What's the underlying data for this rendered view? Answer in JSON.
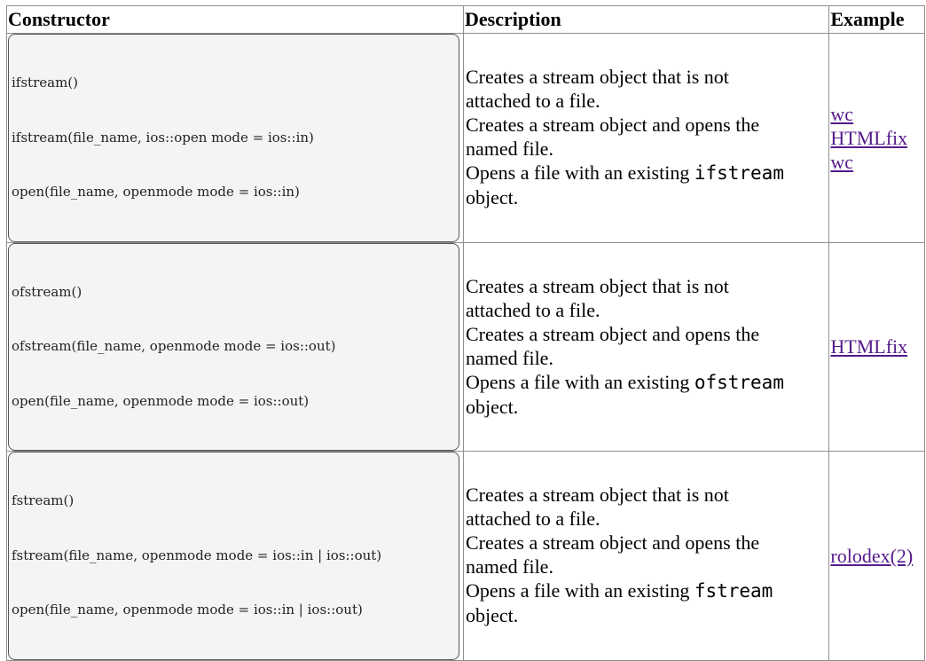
{
  "table": {
    "headers": {
      "constructor": "Constructor",
      "description": "Description",
      "example": "Example"
    },
    "rows": [
      {
        "code": [
          "ifstream()",
          "ifstream(file_name, ios::open mode = ios::in)",
          "open(file_name, openmode mode = ios::in)"
        ],
        "desc": {
          "l1": "Creates a stream object that is not",
          "l2": "attached to a file.",
          "l3": "Creates a stream object and opens the",
          "l4": "named file.",
          "l5_pre": "Opens a file with an existing ",
          "l5_code": "ifstream",
          "l6": "object."
        },
        "examples": [
          "wc",
          "HTMLfix",
          "wc"
        ]
      },
      {
        "code": [
          "ofstream()",
          "ofstream(file_name, openmode mode = ios::out)",
          "open(file_name, openmode mode = ios::out)"
        ],
        "desc": {
          "l1": "Creates a stream object that is not",
          "l2": "attached to a file.",
          "l3": "Creates a stream object and opens the",
          "l4": "named file.",
          "l5_pre": "Opens a file with an existing ",
          "l5_code": "ofstream",
          "l6": "object."
        },
        "examples": [
          "HTMLfix"
        ]
      },
      {
        "code": [
          "fstream()",
          "fstream(file_name, openmode mode = ios::in | ios::out)",
          "open(file_name, openmode mode = ios::in | ios::out)"
        ],
        "desc": {
          "l1": "Creates a stream object that is not",
          "l2": "attached to a file.",
          "l3": "Creates a stream object and opens the",
          "l4": "named file.",
          "l5_pre": "Opens a file with an existing ",
          "l5_code": "fstream",
          "l6": "object."
        },
        "examples": [
          "rolodex(2)"
        ]
      }
    ]
  }
}
